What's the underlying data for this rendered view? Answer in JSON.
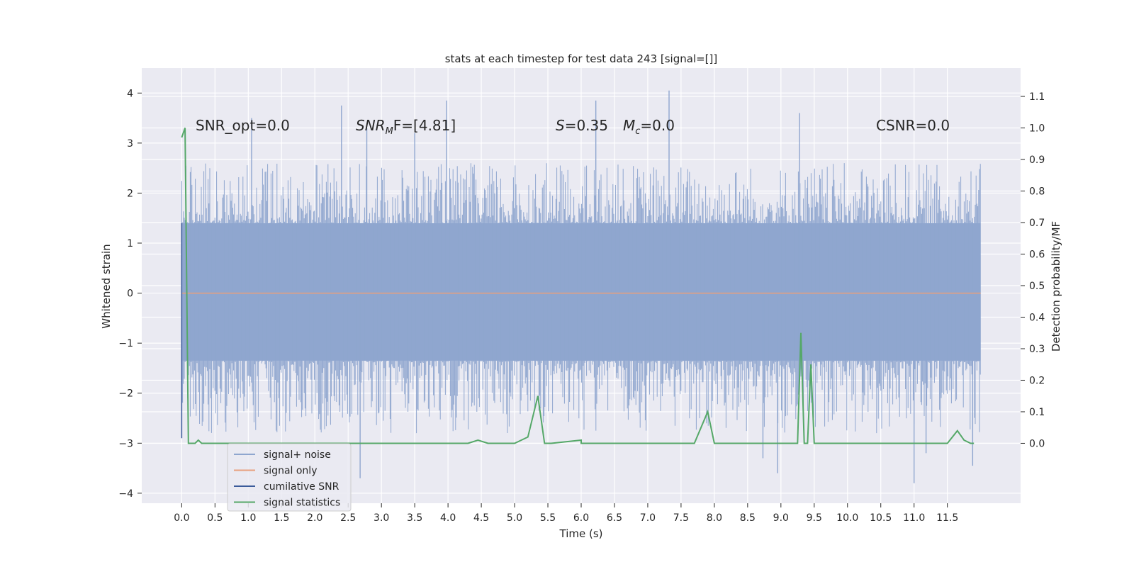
{
  "chart_data": {
    "type": "line",
    "title": "stats at each timestep for test data 243 [signal=[]]",
    "xlabel": "Time (s)",
    "ylabel_left": "Whitened strain",
    "ylabel_right": "Detection probability/MF",
    "xlim": [
      -0.6,
      12.6
    ],
    "ylim_left": [
      -4.2,
      4.5
    ],
    "ylim_right": [
      -0.19,
      1.19
    ],
    "x_ticks": [
      0,
      0.5,
      1,
      1.5,
      2,
      2.5,
      3,
      3.5,
      4,
      4.5,
      5,
      5.5,
      6,
      6.5,
      7,
      7.5,
      8,
      8.5,
      9,
      9.5,
      10,
      10.5,
      11,
      11.5
    ],
    "x_tick_labels": [
      "0.0",
      "0.5",
      "1.0",
      "1.5",
      "2.0",
      "2.5",
      "3.0",
      "3.5",
      "4.0",
      "4.5",
      "5.0",
      "5.5",
      "6.0",
      "6.5",
      "7.0",
      "7.5",
      "8.0",
      "8.5",
      "9.0",
      "9.5",
      "10.0",
      "10.5",
      "11.0",
      "11.5"
    ],
    "y_left_ticks": [
      4,
      3,
      2,
      1,
      0,
      -1,
      -2,
      -3,
      -4
    ],
    "y_left_tick_labels": [
      "4",
      "3",
      "2",
      "1",
      "0",
      "−1",
      "−2",
      "−3",
      "−4"
    ],
    "y_right_ticks": [
      1.1,
      1.0,
      0.9,
      0.8,
      0.7,
      0.6,
      0.5,
      0.4,
      0.3,
      0.2,
      0.1,
      0.0
    ],
    "y_right_tick_labels": [
      "1.1",
      "1.0",
      "0.9",
      "0.8",
      "0.7",
      "0.6",
      "0.5",
      "0.4",
      "0.3",
      "0.2",
      "0.1",
      "0.0"
    ],
    "grid": true,
    "legend_position": "lower-left",
    "annotations": {
      "snr_opt": "SNR_opt=0.0",
      "snr_mf_main": "SNR",
      "snr_mf_sub": "M",
      "snr_mf_rest": "F=[4.81]",
      "s_italic": "S",
      "s_value": "=0.35",
      "mc_italic": "M",
      "mc_sub": "c",
      "mc_value": "=0.0",
      "csnr": "CSNR=0.0"
    },
    "series": [
      {
        "name": "signal+ noise",
        "color": "#8fa6cf",
        "axis": "left",
        "envelope": {
          "x_range": [
            0.0,
            12.0
          ],
          "core_band": [
            -1.35,
            1.4
          ],
          "typical_peak": [
            -2.3,
            2.1
          ],
          "max_spikes": [
            {
              "x": 1.05,
              "y": 3.5
            },
            {
              "x": 2.4,
              "y": 3.75
            },
            {
              "x": 2.78,
              "y": 3.3
            },
            {
              "x": 3.5,
              "y": 3.2
            },
            {
              "x": 3.98,
              "y": 3.85
            },
            {
              "x": 6.22,
              "y": 3.85
            },
            {
              "x": 7.32,
              "y": 4.05
            },
            {
              "x": 9.28,
              "y": 3.6
            },
            {
              "x": 2.68,
              "y": -3.7
            },
            {
              "x": 8.73,
              "y": -3.3
            },
            {
              "x": 8.95,
              "y": -3.6
            },
            {
              "x": 11.0,
              "y": -3.8
            },
            {
              "x": 11.18,
              "y": -3.2
            },
            {
              "x": 11.88,
              "y": -3.45
            }
          ]
        }
      },
      {
        "name": "signal only",
        "color": "#e8a07e",
        "axis": "left",
        "x": [
          0.0,
          12.0
        ],
        "y": [
          0.0,
          0.0
        ]
      },
      {
        "name": "cumilative SNR",
        "color": "#3b5b9a",
        "axis": "left",
        "x": [
          0.0,
          0.0
        ],
        "y": [
          -2.9,
          1.4
        ]
      },
      {
        "name": "signal statistics",
        "color": "#55a868",
        "axis": "right",
        "x": [
          0.0,
          0.05,
          0.1,
          0.15,
          0.2,
          0.25,
          0.3,
          0.35,
          0.5,
          1.0,
          2.0,
          3.0,
          4.0,
          4.3,
          4.45,
          4.6,
          5.0,
          5.2,
          5.35,
          5.45,
          5.55,
          6.0,
          6.0,
          6.5,
          7.0,
          7.5,
          7.7,
          7.9,
          8.0,
          8.5,
          9.0,
          9.25,
          9.3,
          9.35,
          9.4,
          9.45,
          9.5,
          9.55,
          9.6,
          10.0,
          11.0,
          11.5,
          11.65,
          11.75,
          11.85,
          11.9
        ],
        "y": [
          0.97,
          1.0,
          0.0,
          0.0,
          0.0,
          0.01,
          0.0,
          0.0,
          0.0,
          0.0,
          0.0,
          0.0,
          0.0,
          0.0,
          0.01,
          0.0,
          0.0,
          0.02,
          0.15,
          0.0,
          0.0,
          0.01,
          0.0,
          0.0,
          0.0,
          0.0,
          0.0,
          0.1,
          0.0,
          0.0,
          0.0,
          0.0,
          0.35,
          0.0,
          0.0,
          0.25,
          0.0,
          0.0,
          0.0,
          0.0,
          0.0,
          0.0,
          0.04,
          0.01,
          0.0,
          0.0
        ]
      }
    ]
  }
}
